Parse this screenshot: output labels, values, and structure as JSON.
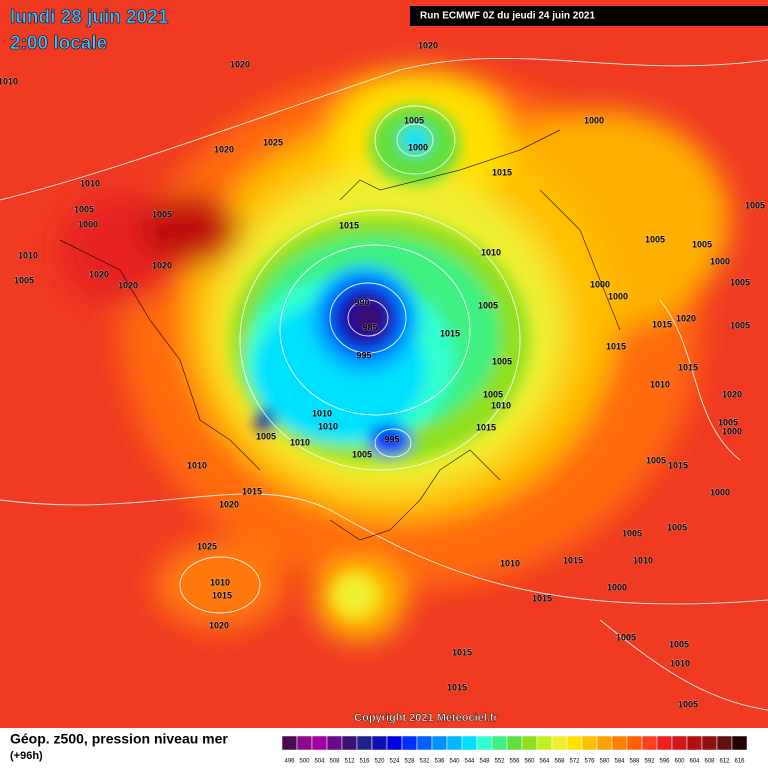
{
  "header": {
    "date": "lundi 28 juin 2021",
    "time": "2:00 locale",
    "run": "Run ECMWF 0Z du jeudi 24 juin 2021"
  },
  "copyright": "Copyright 2021 Meteociel.fr",
  "legend": {
    "title": "Géop. z500, pression niveau mer",
    "lead": "(+96h)",
    "levels": [
      496,
      500,
      504,
      508,
      512,
      516,
      520,
      524,
      528,
      532,
      536,
      540,
      544,
      548,
      552,
      556,
      560,
      564,
      568,
      572,
      576,
      580,
      584,
      588,
      592,
      596,
      600,
      604,
      608,
      612,
      616
    ],
    "colors": [
      "#4b0a4b",
      "#8a0a8a",
      "#a000a0",
      "#6a0a8a",
      "#3a1070",
      "#20208a",
      "#1010b0",
      "#0000e0",
      "#0030ff",
      "#0060ff",
      "#0090ff",
      "#00b8ff",
      "#00e0ff",
      "#30ffd0",
      "#40f080",
      "#60e040",
      "#90e020",
      "#c0f020",
      "#f0f030",
      "#ffe000",
      "#ffc000",
      "#ffa000",
      "#ff8000",
      "#ff6000",
      "#ff4020",
      "#f02020",
      "#d01818",
      "#b01010",
      "#901010",
      "#601010",
      "#200000"
    ]
  },
  "isobar_labels": [
    "1020",
    "1010",
    "1020",
    "1005",
    "1000",
    "1000",
    "1025",
    "1020",
    "1010",
    "1005",
    "1005",
    "1000",
    "1015",
    "1015",
    "1010",
    "1005",
    "1010",
    "1005",
    "1020",
    "1020",
    "1020",
    "1005",
    "1005",
    "1000",
    "1005",
    "1000",
    "1000",
    "990",
    "985",
    "995",
    "1005",
    "1015",
    "1015",
    "1020",
    "1015",
    "1005",
    "1005",
    "1005",
    "1010",
    "1015",
    "1010",
    "1015",
    "1010",
    "1010",
    "1010",
    "1005",
    "995",
    "1005",
    "1010",
    "1005",
    "1015",
    "1015",
    "1020",
    "1000",
    "1005",
    "1005",
    "1010",
    "1015",
    "1010",
    "1000",
    "1015",
    "1025",
    "1010",
    "1015",
    "1020",
    "1005",
    "1005",
    "1010",
    "1015",
    "1015",
    "1005",
    "1020",
    "1000",
    "1005"
  ]
}
